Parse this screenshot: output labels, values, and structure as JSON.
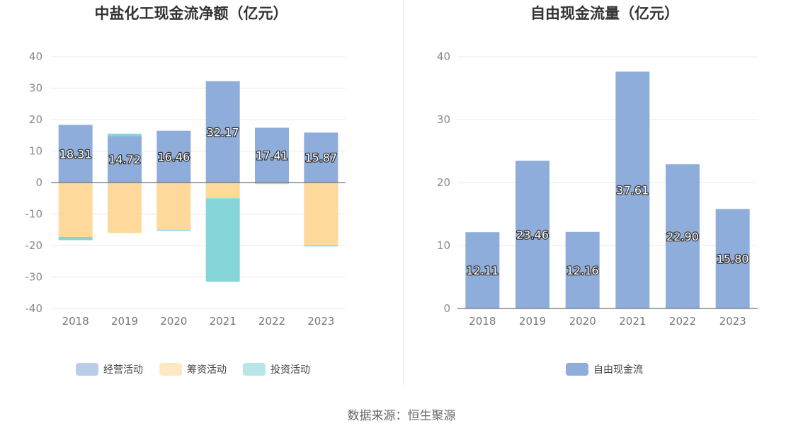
{
  "source_text": "数据来源：恒生聚源",
  "chart_data": [
    {
      "type": "bar",
      "stacked": true,
      "title": "中盐化工现金流净额（亿元）",
      "categories": [
        "2018",
        "2019",
        "2020",
        "2021",
        "2022",
        "2023"
      ],
      "ylim": [
        -40,
        40
      ],
      "yticks": [
        -40,
        -30,
        -20,
        -10,
        0,
        10,
        20,
        30,
        40
      ],
      "grid": true,
      "legend_position": "bottom",
      "series": [
        {
          "name": "经营活动",
          "color": "#8eaddb",
          "values": [
            18.31,
            14.72,
            16.46,
            32.17,
            17.41,
            15.87
          ],
          "show_labels": true
        },
        {
          "name": "筹资活动",
          "color": "#fed99b",
          "values": [
            -17.3,
            -16.0,
            -15.0,
            -5.0,
            -0.3,
            -20.0
          ],
          "show_labels": false
        },
        {
          "name": "投资活动",
          "color": "#86d6d9",
          "values": [
            -1.0,
            0.8,
            -0.3,
            -26.5,
            -0.2,
            -0.3
          ],
          "show_labels": false
        }
      ]
    },
    {
      "type": "bar",
      "title": "自由现金流量（亿元）",
      "categories": [
        "2018",
        "2019",
        "2020",
        "2021",
        "2022",
        "2023"
      ],
      "ylim": [
        0,
        40
      ],
      "yticks": [
        0,
        10,
        20,
        30,
        40
      ],
      "grid": true,
      "legend_position": "bottom",
      "series": [
        {
          "name": "自由现金流",
          "color": "#8eaddb",
          "values": [
            12.11,
            23.46,
            12.16,
            37.61,
            22.9,
            15.8
          ],
          "show_labels": true
        }
      ]
    }
  ]
}
